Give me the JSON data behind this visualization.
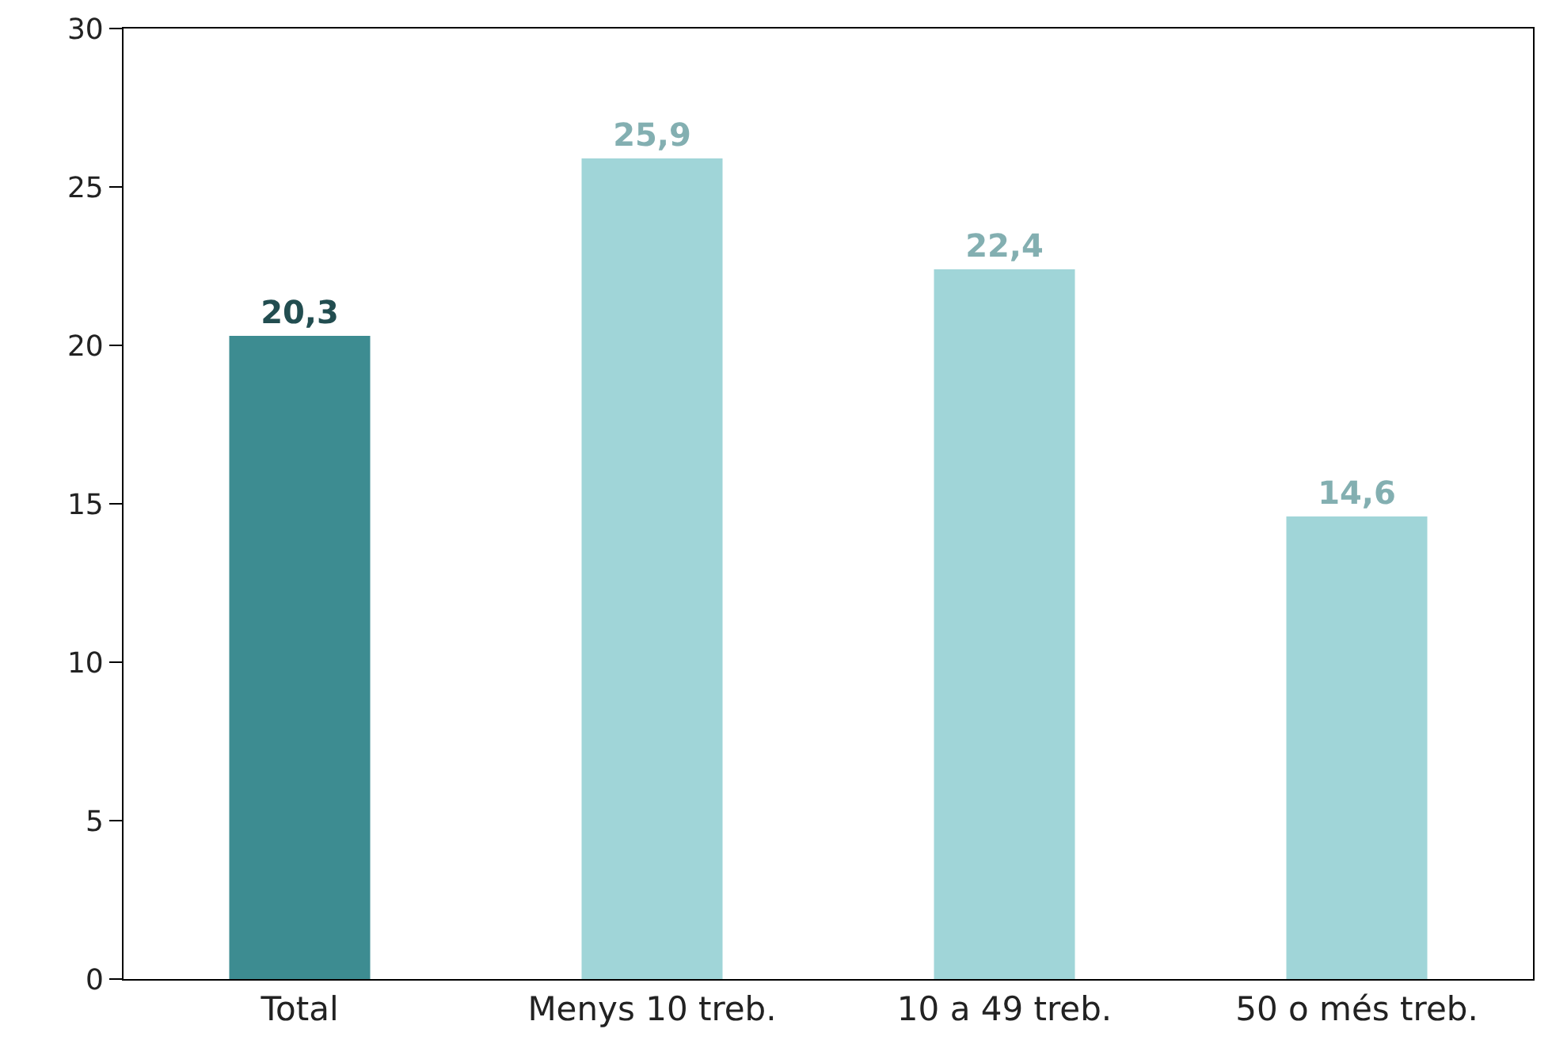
{
  "chart_data": {
    "type": "bar",
    "categories": [
      "Total",
      "Menys 10 treb.",
      "10 a 49 treb.",
      "50 o més treb."
    ],
    "values": [
      20.3,
      25.9,
      22.4,
      14.6
    ],
    "colors": [
      "#3d8c91",
      "#a0d5d8",
      "#a0d5d8",
      "#a0d5d8"
    ],
    "value_labels": [
      "20,3",
      "25,9",
      "22,4",
      "14,6"
    ],
    "ylim": [
      0,
      30
    ],
    "yticks": [
      0,
      5,
      10,
      15,
      20,
      25,
      30
    ],
    "grid": false,
    "legend": false
  }
}
